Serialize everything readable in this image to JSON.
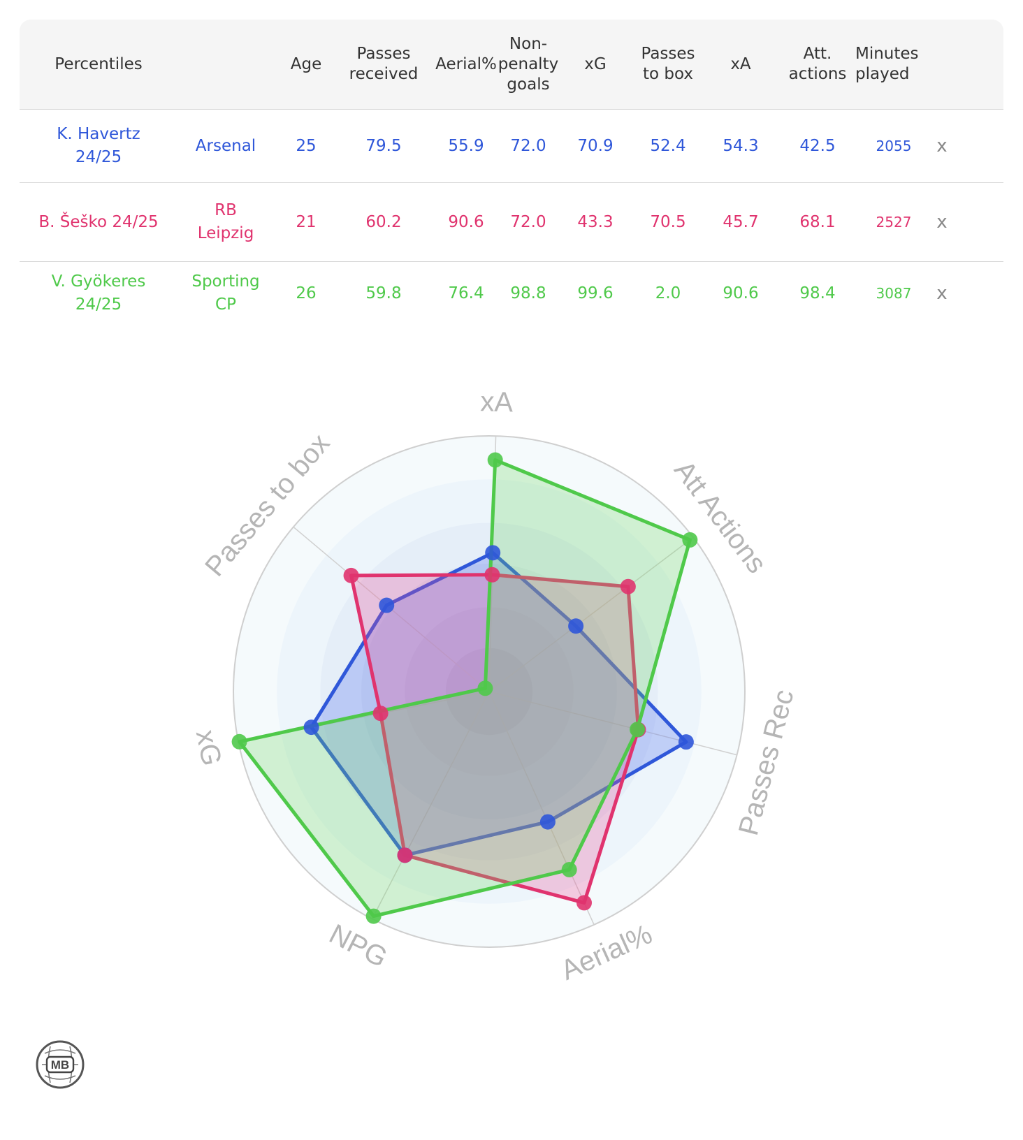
{
  "table": {
    "headers": [
      "Percentiles",
      "",
      "Age",
      "Passes\nreceived",
      "Aerial%",
      "Non-\npenalty\ngoals",
      "xG",
      "Passes\nto box",
      "xA",
      "Att.\nactions",
      "Minutes\nplayed"
    ],
    "remove_label": "x",
    "rows": [
      {
        "player": "K. Havertz\n24/25",
        "team": "Arsenal",
        "age": "25",
        "passes_received": "79.5",
        "aerial": "55.9",
        "npg": "72.0",
        "xg": "70.9",
        "passes_to_box": "52.4",
        "xa": "54.3",
        "att_actions": "42.5",
        "minutes": "2055",
        "color": "#2f57d9"
      },
      {
        "player": "B. Šeško 24/25",
        "team": "RB\nLeipzig",
        "age": "21",
        "passes_received": "60.2",
        "aerial": "90.6",
        "npg": "72.0",
        "xg": "43.3",
        "passes_to_box": "70.5",
        "xa": "45.7",
        "att_actions": "68.1",
        "minutes": "2527",
        "color": "#e0336e"
      },
      {
        "player": "V. Gyökeres\n24/25",
        "team": "Sporting\nCP",
        "age": "26",
        "passes_received": "59.8",
        "aerial": "76.4",
        "npg": "98.8",
        "xg": "99.6",
        "passes_to_box": "2.0",
        "xa": "90.6",
        "att_actions": "98.4",
        "minutes": "3087",
        "color": "#4fc94a"
      }
    ]
  },
  "chart_data": {
    "type": "radar",
    "axes": [
      "xA",
      "Att Actions",
      "Passes Rec",
      "Aerial%",
      "NPG",
      "xG",
      "Passes to box"
    ],
    "range": [
      0,
      100
    ],
    "grid": true,
    "series": [
      {
        "name": "K. Havertz 24/25",
        "color": "#2f57d9",
        "values": [
          54.3,
          42.5,
          79.5,
          55.9,
          72.0,
          70.9,
          52.4
        ]
      },
      {
        "name": "B. Šeško 24/25",
        "color": "#e0336e",
        "values": [
          45.7,
          68.1,
          60.2,
          90.6,
          72.0,
          43.3,
          70.5
        ]
      },
      {
        "name": "V. Gyökeres 24/25",
        "color": "#4fc94a",
        "values": [
          90.6,
          98.4,
          59.8,
          76.4,
          98.8,
          99.6,
          2.0
        ]
      }
    ]
  },
  "logo": {
    "text": "MB",
    "icon": "mb-logo-icon"
  }
}
